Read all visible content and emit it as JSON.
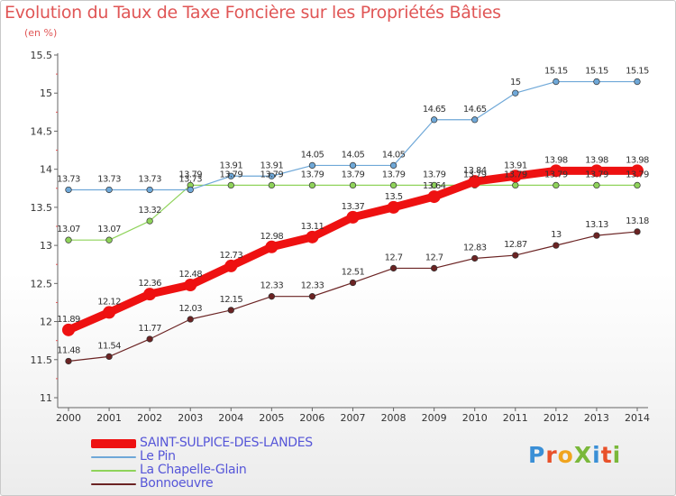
{
  "title": "Evolution du Taux de Taxe Foncière sur les Propriétés Bâties",
  "unit_label": "(en %)",
  "logo": {
    "text": "ProXiti",
    "colors": [
      "#3a8fd6",
      "#e8512a",
      "#f0a41e",
      "#7ab83a",
      "#3a8fd6",
      "#e8512a",
      "#7ab83a"
    ]
  },
  "chart_data": {
    "type": "line",
    "title": "Evolution du Taux de Taxe Foncière sur les Propriétés Bâties",
    "ylabel": "(en %)",
    "xlabel": "",
    "x": [
      "2000",
      "2001",
      "2002",
      "2003",
      "2004",
      "2005",
      "2006",
      "2007",
      "2008",
      "2009",
      "2010",
      "2011",
      "2012",
      "2013",
      "2014"
    ],
    "ylim": [
      11,
      15.5
    ],
    "yticks": [
      "11",
      "11.5",
      "12",
      "12.5",
      "13",
      "13.5",
      "14",
      "14.5",
      "15",
      "15.5"
    ],
    "grid": false,
    "legend_position": "bottom-left",
    "series": [
      {
        "name": "Bonnoeuvre",
        "color": "#6b2323",
        "values": [
          11.48,
          11.54,
          11.77,
          12.03,
          12.15,
          12.33,
          12.33,
          12.51,
          12.7,
          12.7,
          12.83,
          12.87,
          13,
          13.13,
          13.18
        ],
        "labels": [
          "11.48",
          "11.54",
          "11.77",
          "12.03",
          "12.15",
          "12.33",
          "12.33",
          "12.51",
          "12.7",
          "12.7",
          "12.83",
          "12.87",
          "13",
          "13.13",
          "13.18"
        ]
      },
      {
        "name": "La Chapelle-Glain",
        "color": "#8fd35a",
        "values": [
          13.07,
          13.07,
          13.32,
          13.79,
          13.79,
          13.79,
          13.79,
          13.79,
          13.79,
          13.79,
          13.79,
          13.79,
          13.79,
          13.79,
          13.79
        ],
        "labels": [
          "13.07",
          "13.07",
          "13.32",
          "13.79",
          "13.79",
          "13.79",
          "13.79",
          "13.79",
          "13.79",
          "13.79",
          "13.79",
          "13.79",
          "13.79",
          "13.79",
          "13.79"
        ]
      },
      {
        "name": "Le Pin",
        "color": "#6fa8d8",
        "values": [
          13.73,
          13.73,
          13.73,
          13.73,
          13.91,
          13.91,
          14.05,
          14.05,
          14.05,
          14.65,
          14.65,
          15,
          15.15,
          15.15,
          15.15
        ],
        "labels": [
          "13.73",
          "13.73",
          "13.73",
          "13.73",
          "13.91",
          "13.91",
          "14.05",
          "14.05",
          "14.05",
          "14.65",
          "14.65",
          "15",
          "15.15",
          "15.15",
          "15.15"
        ]
      },
      {
        "name": "SAINT-SULPICE-DES-LANDES",
        "color": "#ee1111",
        "values": [
          11.89,
          12.12,
          12.36,
          12.48,
          12.73,
          12.98,
          13.11,
          13.37,
          13.5,
          13.64,
          13.84,
          13.91,
          13.98,
          13.98,
          13.98
        ],
        "labels": [
          "11.89",
          "12.12",
          "12.36",
          "12.48",
          "12.73",
          "12.98",
          "13.11",
          "13.37",
          "13.5",
          "13.64",
          "13.84",
          "13.91",
          "13.98",
          "13.98",
          "13.98"
        ]
      }
    ],
    "legend": [
      {
        "name": "SAINT-SULPICE-DES-LANDES",
        "color": "#ee1111",
        "weight": "thick"
      },
      {
        "name": "Le Pin",
        "color": "#6fa8d8",
        "weight": "thin"
      },
      {
        "name": "La Chapelle-Glain",
        "color": "#8fd35a",
        "weight": "thin"
      },
      {
        "name": "Bonnoeuvre",
        "color": "#6b2323",
        "weight": "thin"
      }
    ]
  }
}
